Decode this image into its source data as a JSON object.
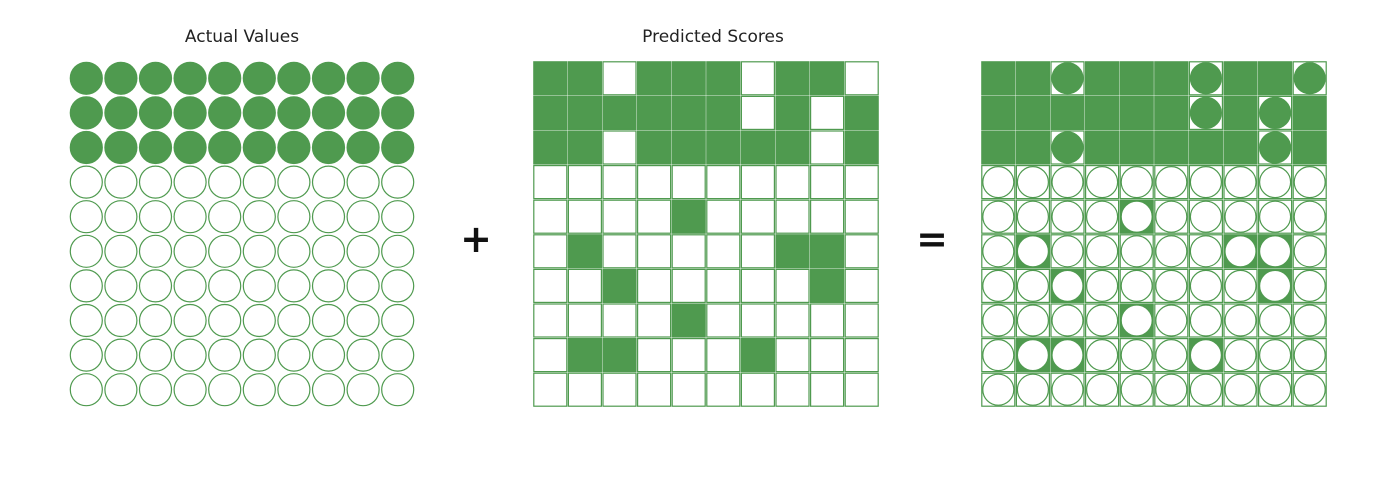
{
  "titles": {
    "actual": "Actual Values",
    "predicted": "Predicted Scores"
  },
  "operators": {
    "plus": "+",
    "equals": "="
  },
  "colors": {
    "fill": "#4f9a4f",
    "stroke": "#4f9a4f",
    "background": "#ffffff"
  },
  "grid": {
    "rows": 10,
    "cols": 10
  },
  "actual_values": [
    [
      1,
      1,
      1,
      1,
      1,
      1,
      1,
      1,
      1,
      1
    ],
    [
      1,
      1,
      1,
      1,
      1,
      1,
      1,
      1,
      1,
      1
    ],
    [
      1,
      1,
      1,
      1,
      1,
      1,
      1,
      1,
      1,
      1
    ],
    [
      0,
      0,
      0,
      0,
      0,
      0,
      0,
      0,
      0,
      0
    ],
    [
      0,
      0,
      0,
      0,
      0,
      0,
      0,
      0,
      0,
      0
    ],
    [
      0,
      0,
      0,
      0,
      0,
      0,
      0,
      0,
      0,
      0
    ],
    [
      0,
      0,
      0,
      0,
      0,
      0,
      0,
      0,
      0,
      0
    ],
    [
      0,
      0,
      0,
      0,
      0,
      0,
      0,
      0,
      0,
      0
    ],
    [
      0,
      0,
      0,
      0,
      0,
      0,
      0,
      0,
      0,
      0
    ],
    [
      0,
      0,
      0,
      0,
      0,
      0,
      0,
      0,
      0,
      0
    ]
  ],
  "predicted_scores": [
    [
      1,
      1,
      0,
      1,
      1,
      1,
      0,
      1,
      1,
      0
    ],
    [
      1,
      1,
      1,
      1,
      1,
      1,
      0,
      1,
      0,
      1
    ],
    [
      1,
      1,
      0,
      1,
      1,
      1,
      1,
      1,
      0,
      1
    ],
    [
      0,
      0,
      0,
      0,
      0,
      0,
      0,
      0,
      0,
      0
    ],
    [
      0,
      0,
      0,
      0,
      1,
      0,
      0,
      0,
      0,
      0
    ],
    [
      0,
      1,
      0,
      0,
      0,
      0,
      0,
      1,
      1,
      0
    ],
    [
      0,
      0,
      1,
      0,
      0,
      0,
      0,
      0,
      1,
      0
    ],
    [
      0,
      0,
      0,
      0,
      1,
      0,
      0,
      0,
      0,
      0
    ],
    [
      0,
      1,
      1,
      0,
      0,
      0,
      1,
      0,
      0,
      0
    ],
    [
      0,
      0,
      0,
      0,
      0,
      0,
      0,
      0,
      0,
      0
    ]
  ]
}
